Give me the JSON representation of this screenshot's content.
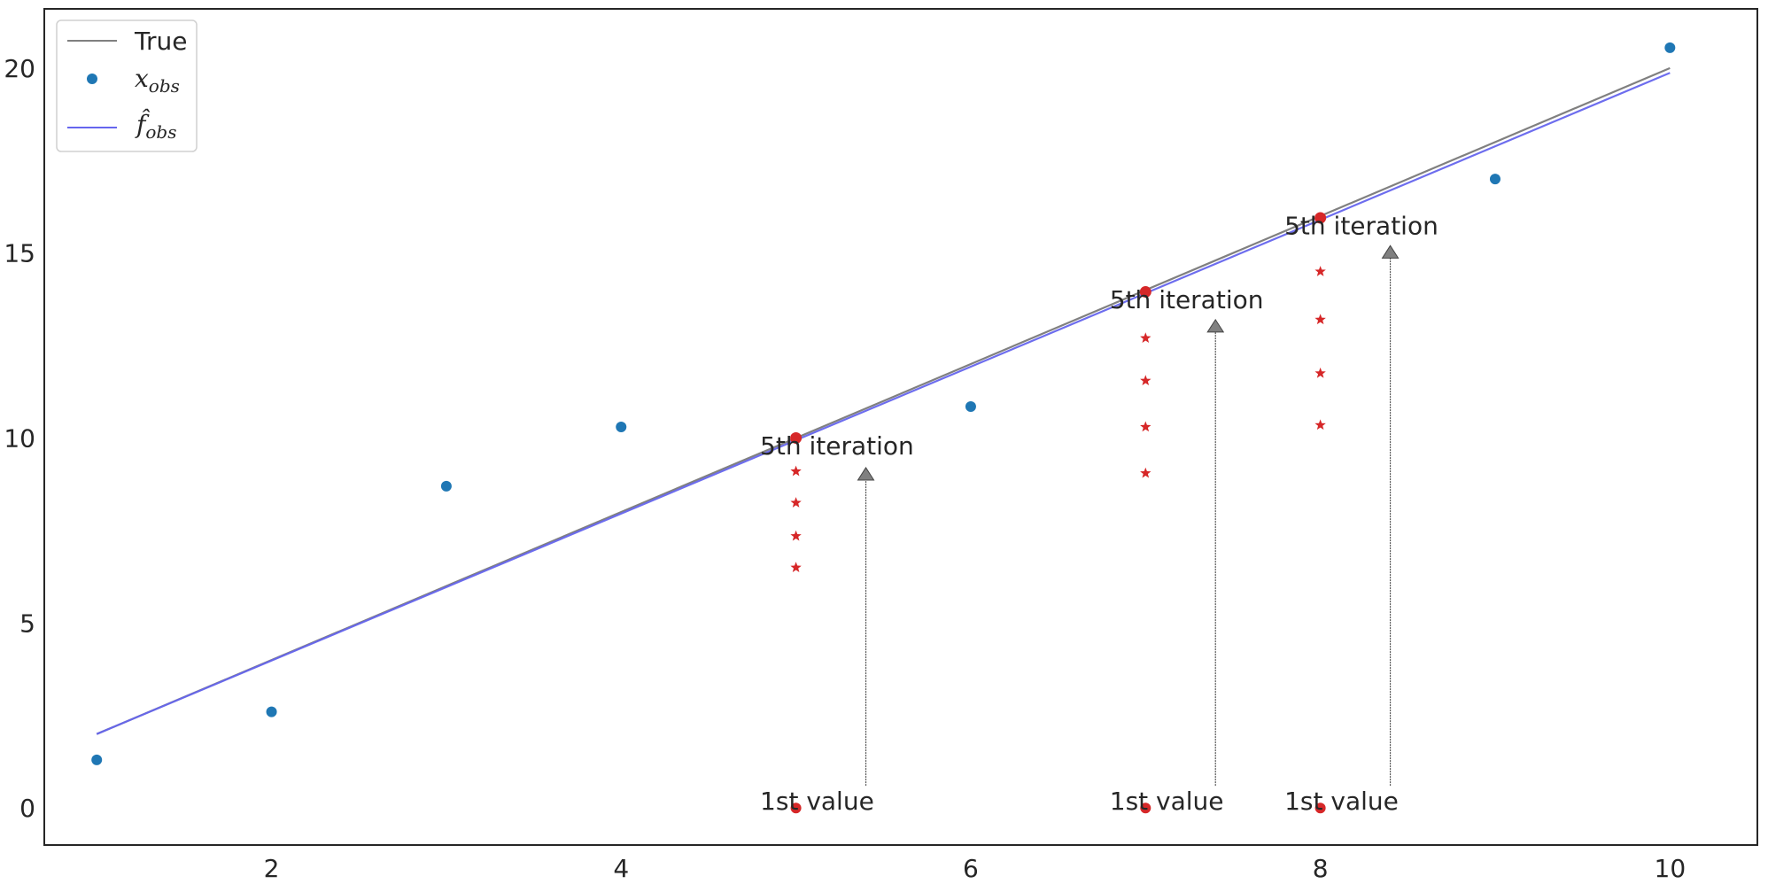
{
  "chart_data": {
    "type": "scatter",
    "title": "",
    "xlabel": "",
    "ylabel": "",
    "xlim": [
      0.7,
      10.5
    ],
    "ylim": [
      -1.0,
      21.6
    ],
    "xticks": [
      2,
      4,
      6,
      8,
      10
    ],
    "yticks": [
      0,
      5,
      10,
      15,
      20
    ],
    "grid": false,
    "legend_position": "top-left",
    "colors": {
      "true": "#808080",
      "obs": "#1f77b4",
      "fit": "#6666ee",
      "iter": "#d62728",
      "arrow": "#808080"
    },
    "series": [
      {
        "name": "True",
        "kind": "line",
        "x": [
          1,
          10
        ],
        "y": [
          2,
          20
        ]
      },
      {
        "name": "x_obs",
        "name_main": "x",
        "name_sub": "obs",
        "kind": "points",
        "x": [
          1,
          2,
          3,
          4,
          5,
          6,
          7,
          8,
          9,
          10
        ],
        "y": [
          1.3,
          2.6,
          8.7,
          10.3,
          0,
          10.85,
          0,
          0,
          17.0,
          20.55
        ]
      },
      {
        "name": "f̂_obs",
        "name_main": "f̂",
        "name_sub": "obs",
        "kind": "line",
        "x": [
          1,
          10
        ],
        "y": [
          2.0,
          19.87
        ]
      }
    ],
    "iterations": [
      {
        "x": 5,
        "first": 0,
        "stars": [
          6.5,
          7.35,
          8.25,
          9.1
        ],
        "final": 10.0
      },
      {
        "x": 7,
        "first": 0,
        "stars": [
          9.05,
          10.3,
          11.55,
          12.7
        ],
        "final": 13.95
      },
      {
        "x": 8,
        "first": 0,
        "stars": [
          10.35,
          11.75,
          13.2,
          14.5
        ],
        "final": 15.95
      }
    ],
    "annotations": [
      {
        "text": "5th iteration",
        "x": 5.2,
        "y": 9.8
      },
      {
        "text": "5th iteration",
        "x": 7.2,
        "y": 13.75
      },
      {
        "text": "5th iteration",
        "x": 8.2,
        "y": 15.75
      },
      {
        "text": "1st value",
        "x": 5.2,
        "y": 0.2
      },
      {
        "text": "1st value",
        "x": 7.2,
        "y": 0.2
      },
      {
        "text": "1st value",
        "x": 8.2,
        "y": 0.2
      }
    ],
    "arrows": [
      {
        "x": 5.4,
        "y_from": 0.6,
        "y_to": 9.2
      },
      {
        "x": 7.4,
        "y_from": 0.6,
        "y_to": 13.2
      },
      {
        "x": 8.4,
        "y_from": 0.6,
        "y_to": 15.2
      }
    ]
  }
}
